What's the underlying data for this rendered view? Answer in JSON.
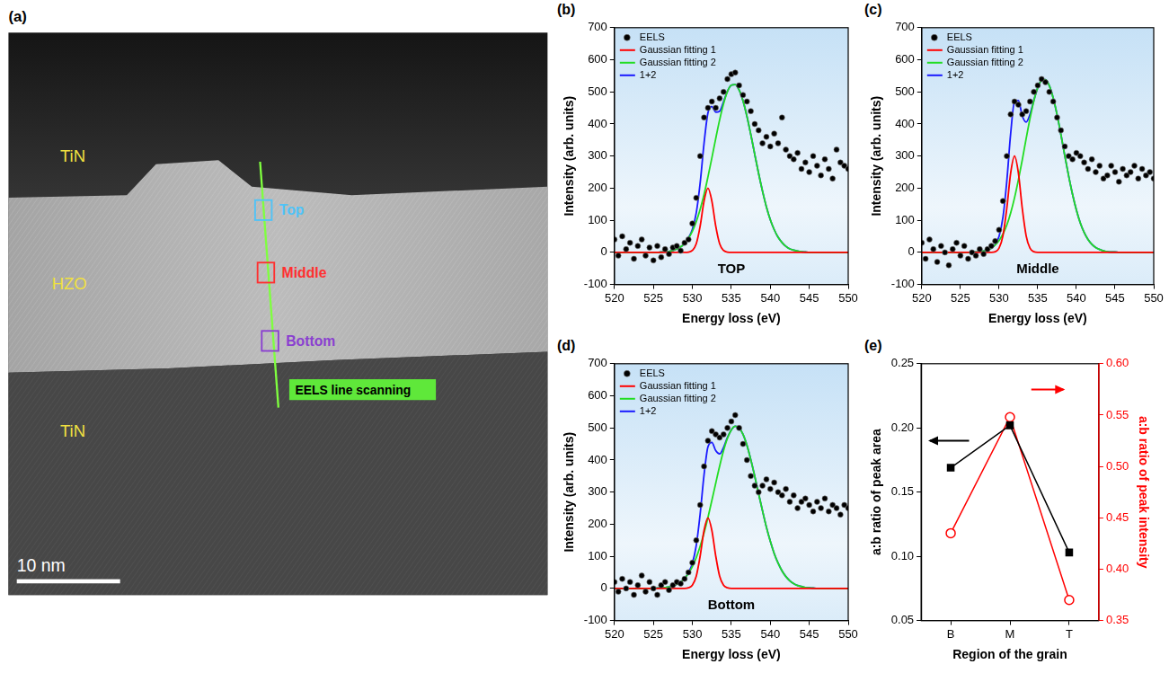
{
  "image_panel": {
    "panel_label": "(a)",
    "regions": [
      {
        "label": "TiN"
      },
      {
        "label": "HZO"
      },
      {
        "label": "TiN"
      }
    ],
    "markers": [
      {
        "label": "Top",
        "color": "#4fc3f7"
      },
      {
        "label": "Middle",
        "color": "#ff3030"
      },
      {
        "label": "Bottom",
        "color": "#8a3fd0"
      }
    ],
    "scan_label": "EELS line scanning",
    "scale_bar": "10 nm"
  },
  "chart_data": [
    {
      "panel_label": "(b)",
      "type": "line",
      "annotation": "TOP",
      "x_label": "Energy loss (eV)",
      "y_label": "Intensity (arb. units)",
      "x": [
        520,
        520.5,
        521,
        521.5,
        522,
        522.5,
        523,
        523.5,
        524,
        524.5,
        525,
        525.5,
        526,
        526.5,
        527,
        527.5,
        528,
        528.5,
        529,
        529.5,
        530,
        530.5,
        531,
        531.5,
        532,
        532.5,
        533,
        533.5,
        534,
        534.5,
        535,
        535.5,
        536,
        536.5,
        537,
        537.5,
        538,
        538.5,
        539,
        539.5,
        540,
        540.5,
        541,
        541.5,
        542,
        542.5,
        543,
        543.5,
        544,
        544.5,
        545,
        545.5,
        546,
        546.5,
        547,
        547.5,
        548,
        548.5,
        549,
        549.5,
        550
      ],
      "series": [
        {
          "name": "EELS",
          "type": "scatter",
          "marker": "circle",
          "color": "#000000",
          "values": [
            40,
            -10,
            50,
            10,
            30,
            -20,
            20,
            40,
            -10,
            15,
            -25,
            20,
            -15,
            10,
            -5,
            15,
            20,
            5,
            30,
            40,
            90,
            170,
            300,
            420,
            450,
            470,
            450,
            480,
            500,
            540,
            555,
            560,
            520,
            490,
            470,
            440,
            400,
            380,
            340,
            360,
            330,
            370,
            340,
            420,
            320,
            300,
            290,
            310,
            260,
            280,
            250,
            300,
            270,
            240,
            290,
            260,
            230,
            320,
            280,
            270,
            260
          ]
        },
        {
          "name": "Gaussian fitting 1",
          "color": "#ff0000",
          "values": [
            0,
            0,
            0,
            0,
            0,
            0,
            0,
            0,
            0,
            0,
            0,
            0,
            0,
            0,
            0,
            0,
            0,
            0,
            0,
            1,
            6,
            27,
            82,
            160,
            200,
            160,
            82,
            27,
            6,
            1,
            0,
            0,
            0,
            0,
            0,
            0,
            0,
            0,
            0,
            0,
            0,
            0,
            0,
            0,
            0,
            0,
            0,
            0,
            0,
            0,
            0,
            0,
            0,
            0,
            0,
            0,
            0,
            0,
            0,
            0,
            0
          ]
        },
        {
          "name": "Gaussian fitting 2",
          "color": "#22dd22",
          "values": [
            0,
            0,
            0,
            0,
            0,
            0,
            0,
            0,
            0,
            0,
            0,
            0,
            1,
            2,
            3,
            6,
            10,
            17,
            28,
            44,
            66,
            96,
            134,
            180,
            235,
            294,
            355,
            413,
            463,
            501,
            521,
            523,
            506,
            472,
            424,
            367,
            306,
            246,
            191,
            142,
            102,
            71,
            47,
            31,
            19,
            11,
            7,
            4,
            2,
            1,
            0,
            0,
            0,
            0,
            0,
            0,
            0,
            0,
            0,
            0,
            0
          ]
        },
        {
          "name": "1+2",
          "color": "#1a1aff",
          "values": [
            0,
            0,
            0,
            0,
            0,
            0,
            0,
            0,
            0,
            0,
            0,
            0,
            1,
            2,
            3,
            6,
            10,
            17,
            28,
            45,
            72,
            123,
            216,
            340,
            435,
            454,
            437,
            440,
            469,
            502,
            521,
            523,
            506,
            472,
            424,
            367,
            306,
            246,
            191,
            142,
            102,
            71,
            47,
            31,
            19,
            11,
            7,
            4,
            2,
            1,
            0,
            0,
            0,
            0,
            0,
            0,
            0,
            0,
            0,
            0,
            0
          ]
        }
      ],
      "xlim": [
        520,
        550
      ],
      "xticks": [
        520,
        525,
        530,
        535,
        540,
        545,
        550
      ],
      "ylim": [
        -100,
        700
      ],
      "yticks": [
        -100,
        0,
        100,
        200,
        300,
        400,
        500,
        600,
        700
      ],
      "legend": "upper left"
    },
    {
      "panel_label": "(c)",
      "type": "line",
      "annotation": "Middle",
      "x_label": "Energy loss (eV)",
      "y_label": "Intensity (arb. units)",
      "x": [
        520,
        520.5,
        521,
        521.5,
        522,
        522.5,
        523,
        523.5,
        524,
        524.5,
        525,
        525.5,
        526,
        526.5,
        527,
        527.5,
        528,
        528.5,
        529,
        529.5,
        530,
        530.5,
        531,
        531.5,
        532,
        532.5,
        533,
        533.5,
        534,
        534.5,
        535,
        535.5,
        536,
        536.5,
        537,
        537.5,
        538,
        538.5,
        539,
        539.5,
        540,
        540.5,
        541,
        541.5,
        542,
        542.5,
        543,
        543.5,
        544,
        544.5,
        545,
        545.5,
        546,
        546.5,
        547,
        547.5,
        548,
        548.5,
        549,
        549.5,
        550
      ],
      "series": [
        {
          "name": "EELS",
          "type": "scatter",
          "marker": "circle",
          "color": "#000000",
          "values": [
            30,
            -20,
            40,
            10,
            -30,
            20,
            0,
            -40,
            10,
            30,
            -10,
            20,
            -20,
            0,
            -10,
            10,
            -5,
            10,
            20,
            35,
            70,
            160,
            300,
            430,
            470,
            460,
            430,
            440,
            470,
            500,
            520,
            540,
            530,
            500,
            470,
            420,
            380,
            330,
            300,
            290,
            310,
            300,
            280,
            260,
            290,
            250,
            270,
            230,
            240,
            270,
            250,
            220,
            260,
            240,
            250,
            270,
            230,
            260,
            240,
            250,
            230
          ]
        },
        {
          "name": "Gaussian fitting 1",
          "color": "#ff0000",
          "values": [
            0,
            0,
            0,
            0,
            0,
            0,
            0,
            0,
            0,
            0,
            0,
            0,
            0,
            0,
            0,
            0,
            0,
            0,
            0,
            2,
            13,
            52,
            137,
            247,
            300,
            247,
            137,
            52,
            13,
            2,
            0,
            0,
            0,
            0,
            0,
            0,
            0,
            0,
            0,
            0,
            0,
            0,
            0,
            0,
            0,
            0,
            0,
            0,
            0,
            0,
            0,
            0,
            0,
            0,
            0,
            0,
            0,
            0,
            0,
            0,
            0
          ]
        },
        {
          "name": "Gaussian fitting 2",
          "color": "#22dd22",
          "values": [
            0,
            0,
            0,
            0,
            0,
            0,
            0,
            0,
            0,
            0,
            0,
            0,
            0,
            1,
            1,
            2,
            4,
            8,
            13,
            23,
            37,
            57,
            85,
            123,
            170,
            226,
            288,
            354,
            417,
            472,
            513,
            536,
            538,
            519,
            481,
            429,
            367,
            301,
            238,
            181,
            132,
            92,
            62,
            40,
            25,
            15,
            9,
            5,
            2,
            1,
            1,
            0,
            0,
            0,
            0,
            0,
            0,
            0,
            0,
            0,
            0
          ]
        },
        {
          "name": "1+2",
          "color": "#1a1aff",
          "values": [
            0,
            0,
            0,
            0,
            0,
            0,
            0,
            0,
            0,
            0,
            0,
            0,
            0,
            1,
            1,
            2,
            4,
            8,
            13,
            25,
            50,
            109,
            222,
            370,
            470,
            473,
            425,
            406,
            430,
            474,
            513,
            536,
            538,
            519,
            481,
            429,
            367,
            301,
            238,
            181,
            132,
            92,
            62,
            40,
            25,
            15,
            9,
            5,
            2,
            1,
            1,
            0,
            0,
            0,
            0,
            0,
            0,
            0,
            0,
            0,
            0
          ]
        }
      ],
      "xlim": [
        520,
        550
      ],
      "xticks": [
        520,
        525,
        530,
        535,
        540,
        545,
        550
      ],
      "ylim": [
        -100,
        700
      ],
      "yticks": [
        -100,
        0,
        100,
        200,
        300,
        400,
        500,
        600,
        700
      ],
      "legend": "upper left"
    },
    {
      "panel_label": "(d)",
      "type": "line",
      "annotation": "Bottom",
      "x_label": "Energy loss (eV)",
      "y_label": "Intensity (arb. units)",
      "x": [
        520,
        520.5,
        521,
        521.5,
        522,
        522.5,
        523,
        523.5,
        524,
        524.5,
        525,
        525.5,
        526,
        526.5,
        527,
        527.5,
        528,
        528.5,
        529,
        529.5,
        530,
        530.5,
        531,
        531.5,
        532,
        532.5,
        533,
        533.5,
        534,
        534.5,
        535,
        535.5,
        536,
        536.5,
        537,
        537.5,
        538,
        538.5,
        539,
        539.5,
        540,
        540.5,
        541,
        541.5,
        542,
        542.5,
        543,
        543.5,
        544,
        544.5,
        545,
        545.5,
        546,
        546.5,
        547,
        547.5,
        548,
        548.5,
        549,
        549.5,
        550
      ],
      "series": [
        {
          "name": "EELS",
          "type": "scatter",
          "marker": "circle",
          "color": "#000000",
          "values": [
            20,
            -10,
            30,
            0,
            20,
            -20,
            10,
            40,
            -10,
            20,
            0,
            -20,
            10,
            20,
            -5,
            10,
            20,
            15,
            30,
            50,
            80,
            150,
            260,
            380,
            460,
            490,
            480,
            470,
            480,
            500,
            520,
            540,
            500,
            450,
            400,
            350,
            320,
            300,
            320,
            340,
            310,
            330,
            300,
            290,
            310,
            270,
            290,
            250,
            270,
            280,
            260,
            240,
            270,
            250,
            280,
            240,
            260,
            250,
            230,
            260,
            250
          ]
        },
        {
          "name": "Gaussian fitting 1",
          "color": "#ff0000",
          "values": [
            0,
            0,
            0,
            0,
            0,
            0,
            0,
            0,
            0,
            0,
            0,
            0,
            0,
            0,
            0,
            0,
            0,
            0,
            0,
            2,
            10,
            38,
            101,
            181,
            220,
            181,
            101,
            38,
            10,
            2,
            0,
            0,
            0,
            0,
            0,
            0,
            0,
            0,
            0,
            0,
            0,
            0,
            0,
            0,
            0,
            0,
            0,
            0,
            0,
            0,
            0,
            0,
            0,
            0,
            0,
            0,
            0,
            0,
            0,
            0,
            0
          ]
        },
        {
          "name": "Gaussian fitting 2",
          "color": "#22dd22",
          "values": [
            0,
            0,
            0,
            0,
            0,
            0,
            0,
            0,
            0,
            0,
            0,
            1,
            1,
            3,
            5,
            8,
            13,
            20,
            31,
            47,
            68,
            96,
            131,
            173,
            221,
            274,
            328,
            381,
            429,
            468,
            494,
            505,
            500,
            480,
            446,
            401,
            350,
            295,
            242,
            191,
            147,
            109,
            79,
            55,
            37,
            24,
            15,
            9,
            6,
            3,
            2,
            1,
            0,
            0,
            0,
            0,
            0,
            0,
            0,
            0,
            0
          ]
        },
        {
          "name": "1+2",
          "color": "#1a1aff",
          "values": [
            0,
            0,
            0,
            0,
            0,
            0,
            0,
            0,
            0,
            0,
            0,
            1,
            1,
            3,
            5,
            8,
            13,
            20,
            31,
            49,
            78,
            134,
            232,
            354,
            441,
            455,
            429,
            419,
            439,
            470,
            494,
            505,
            500,
            480,
            446,
            401,
            350,
            295,
            242,
            191,
            147,
            109,
            79,
            55,
            37,
            24,
            15,
            9,
            6,
            3,
            2,
            1,
            0,
            0,
            0,
            0,
            0,
            0,
            0,
            0,
            0
          ]
        }
      ],
      "xlim": [
        520,
        550
      ],
      "xticks": [
        520,
        525,
        530,
        535,
        540,
        545,
        550
      ],
      "ylim": [
        -100,
        700
      ],
      "yticks": [
        -100,
        0,
        100,
        200,
        300,
        400,
        500,
        600,
        700
      ],
      "legend": "upper left"
    },
    {
      "panel_label": "(e)",
      "type": "line",
      "x_label": "Region of the grain",
      "y_label": "a:b ratio of peak area",
      "y2_label": "a:b ratio of peak intensity",
      "categories": [
        "B",
        "M",
        "T"
      ],
      "series": [
        {
          "color": "#000000",
          "marker": "square",
          "values": [
            0.169,
            0.202,
            0.103
          ]
        },
        {
          "color": "#ff0000",
          "marker": "open_circle",
          "axis": "y2",
          "values": [
            0.435,
            0.548,
            0.37
          ]
        }
      ],
      "ylim": [
        0.05,
        0.25
      ],
      "yticks": [
        0.05,
        {
          "value": 0.1,
          "label": "0.10"
        },
        0.15,
        {
          "value": 0.2,
          "label": "0.20"
        },
        0.25
      ],
      "y2lim": [
        0.35,
        0.6
      ],
      "y2ticks": [
        0.35,
        {
          "value": 0.4,
          "label": "0.40"
        },
        0.45,
        {
          "value": 0.5,
          "label": "0.50"
        },
        0.55,
        {
          "value": 0.6,
          "label": "0.60"
        }
      ]
    }
  ]
}
